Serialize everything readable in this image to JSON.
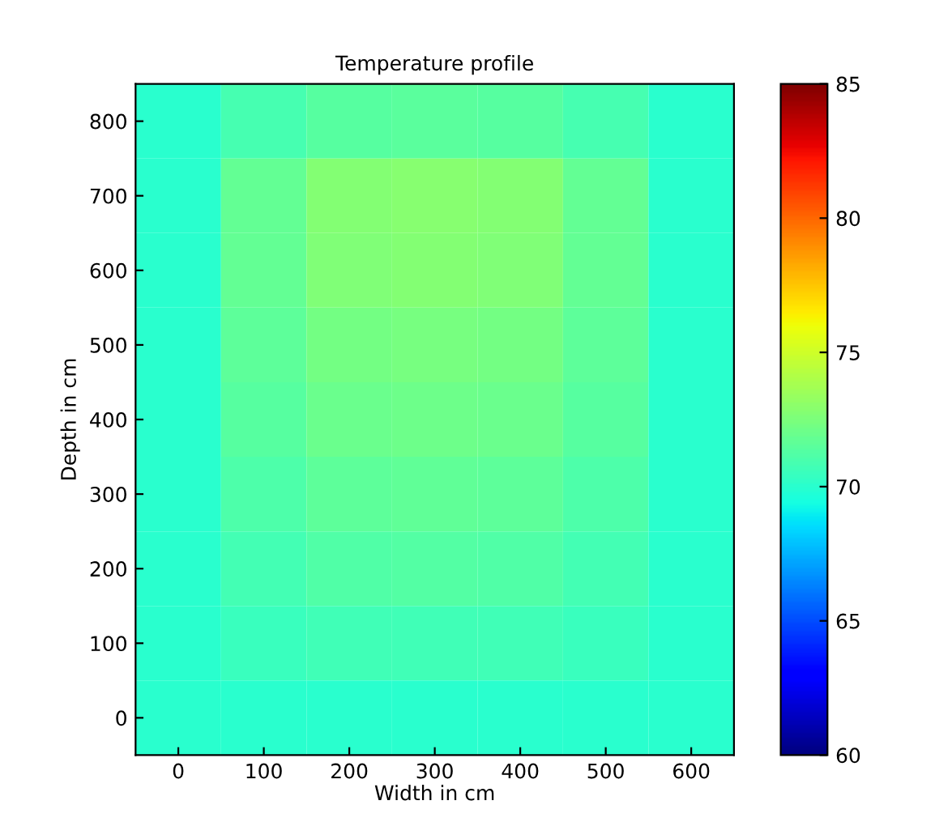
{
  "chart_data": {
    "type": "heatmap",
    "title": "Temperature profile",
    "xlabel": "Width in cm",
    "ylabel": "Depth in cm",
    "categories": [
      "0",
      "100",
      "200",
      "300",
      "400",
      "500",
      "600"
    ],
    "y_categories": [
      "800",
      "700",
      "600",
      "500",
      "400",
      "300",
      "200",
      "100",
      "0"
    ],
    "cells": [
      [
        70.0,
        70.9,
        71.4,
        71.5,
        71.4,
        70.9,
        70.0
      ],
      [
        70.0,
        71.8,
        72.7,
        72.8,
        72.7,
        71.8,
        70.0
      ],
      [
        70.0,
        71.8,
        72.6,
        72.7,
        72.6,
        71.8,
        70.0
      ],
      [
        70.0,
        71.6,
        72.3,
        72.4,
        72.3,
        71.6,
        70.0
      ],
      [
        70.0,
        71.4,
        72.0,
        72.1,
        72.0,
        71.4,
        70.0
      ],
      [
        70.0,
        71.1,
        71.6,
        71.7,
        71.6,
        71.1,
        70.0
      ],
      [
        70.0,
        70.8,
        71.2,
        71.3,
        71.2,
        70.8,
        70.0
      ],
      [
        70.0,
        70.5,
        70.7,
        70.7,
        70.7,
        70.5,
        70.0
      ],
      [
        70.0,
        70.0,
        70.0,
        70.0,
        70.0,
        70.0,
        70.0
      ]
    ],
    "clim": [
      60,
      85
    ],
    "cticks": [
      60,
      65,
      70,
      75,
      80,
      85
    ]
  }
}
